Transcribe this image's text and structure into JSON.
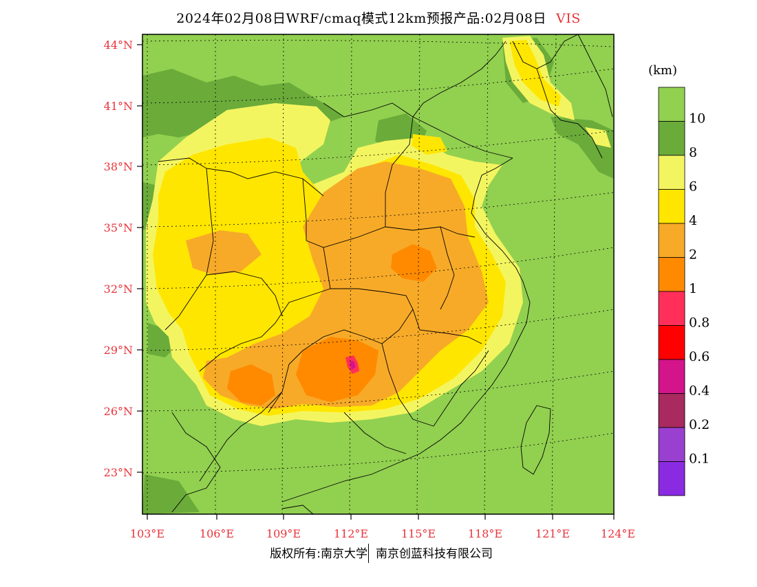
{
  "title": {
    "main": "2024年02月08日WRF/cmaq模式12km预报产品:02月08日",
    "variable": "VIS",
    "variable_color": "#e8333a"
  },
  "axes": {
    "lon_labels": [
      "103°E",
      "106°E",
      "109°E",
      "112°E",
      "115°E",
      "118°E",
      "121°E",
      "124°E"
    ],
    "lat_labels": [
      "44°N",
      "41°N",
      "38°N",
      "35°N",
      "32°N",
      "29°N",
      "26°N",
      "23°N"
    ],
    "tick_label_color": "#e8333a"
  },
  "colorbar": {
    "unit": "(km)",
    "boundaries": [
      "10",
      "8",
      "6",
      "4",
      "2",
      "1",
      "0.8",
      "0.6",
      "0.4",
      "0.2",
      "0.1"
    ],
    "colors": [
      "#92d050",
      "#6aab3a",
      "#f3f560",
      "#ffe600",
      "#f7aa28",
      "#ff8a00",
      "#ff2f5a",
      "#ff0000",
      "#d4148a",
      "#a82a5e",
      "#9a40d0",
      "#8a2be2"
    ]
  },
  "field_colors": {
    "vis_gt_10": "#92d050",
    "vis_8_10": "#6aab3a",
    "vis_6_8": "#f3f560",
    "vis_4_6": "#ffe600",
    "vis_2_4": "#f7aa28",
    "vis_1_2": "#ff8a00",
    "vis_lt_1": "#ff2f5a",
    "vis_lt_0_6": "#d4148a"
  },
  "footer": {
    "copyright": "版权所有:南京大学",
    "company": "南京创蓝科技有限公司"
  }
}
